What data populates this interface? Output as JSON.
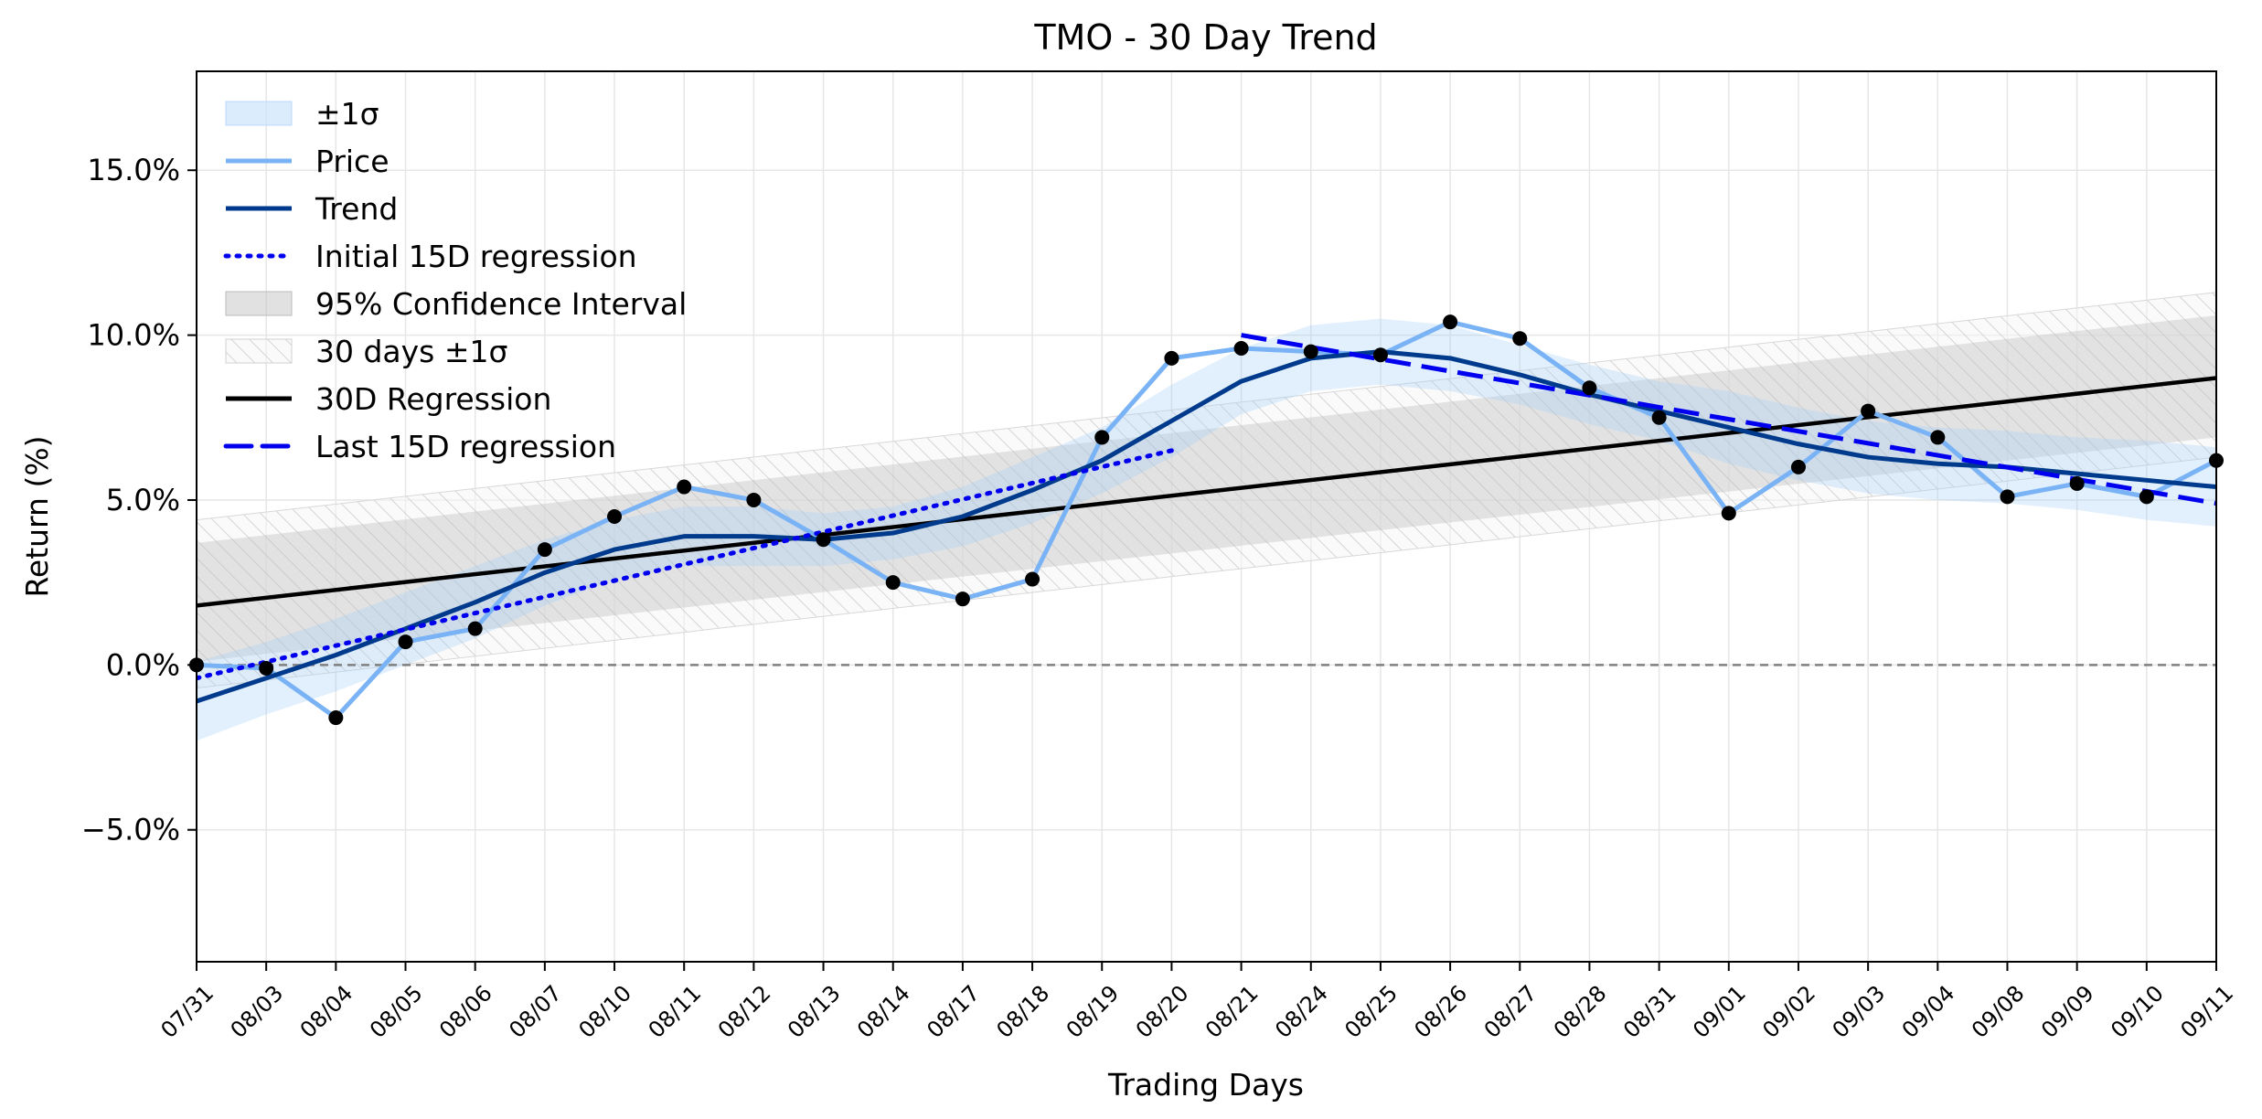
{
  "chart_data": {
    "type": "line",
    "title": "TMO - 30 Day Trend",
    "xlabel": "Trading Days",
    "ylabel": "Return (%)",
    "ylim": [
      -9.0,
      18.0
    ],
    "yticks": [
      -5.0,
      0.0,
      5.0,
      10.0,
      15.0
    ],
    "ytick_labels": [
      "−5.0%",
      "0.0%",
      "5.0%",
      "10.0%",
      "15.0%"
    ],
    "grid": true,
    "legend_position": "top-left",
    "categories": [
      "07/31",
      "08/03",
      "08/04",
      "08/05",
      "08/06",
      "08/07",
      "08/10",
      "08/11",
      "08/12",
      "08/13",
      "08/14",
      "08/17",
      "08/18",
      "08/19",
      "08/20",
      "08/21",
      "08/24",
      "08/25",
      "08/26",
      "08/27",
      "08/28",
      "08/31",
      "09/01",
      "09/02",
      "09/03",
      "09/04",
      "09/08",
      "09/09",
      "09/10",
      "09/11"
    ],
    "series": [
      {
        "name": "Price",
        "color": "#7ab3f5",
        "values": [
          0.0,
          -0.1,
          -1.6,
          0.7,
          1.1,
          3.5,
          4.5,
          5.4,
          5.0,
          3.8,
          2.5,
          2.0,
          2.6,
          6.9,
          9.3,
          9.6,
          9.5,
          9.4,
          10.4,
          9.9,
          8.4,
          7.5,
          4.6,
          6.0,
          7.7,
          6.9,
          5.1,
          5.5,
          5.1,
          6.2
        ]
      },
      {
        "name": "Trend",
        "color": "#003a8c",
        "values": [
          -1.1,
          -0.4,
          0.3,
          1.1,
          1.9,
          2.8,
          3.5,
          3.9,
          3.9,
          3.8,
          4.0,
          4.5,
          5.3,
          6.2,
          7.4,
          8.6,
          9.3,
          9.5,
          9.3,
          8.8,
          8.2,
          7.7,
          7.2,
          6.7,
          6.3,
          6.1,
          6.0,
          5.8,
          5.6,
          5.4
        ]
      },
      {
        "name": "±1σ",
        "color": "#cce4fb",
        "lower": [
          -2.3,
          -1.5,
          -0.8,
          0.0,
          0.8,
          1.8,
          2.6,
          3.0,
          3.0,
          3.0,
          3.2,
          3.6,
          4.3,
          5.2,
          6.3,
          7.6,
          8.3,
          8.5,
          8.3,
          7.9,
          7.3,
          6.8,
          6.1,
          5.6,
          5.2,
          5.0,
          4.9,
          4.7,
          4.4,
          4.2
        ],
        "upper": [
          0.1,
          0.7,
          1.4,
          2.2,
          3.0,
          3.8,
          4.4,
          4.8,
          4.8,
          4.6,
          4.8,
          5.4,
          6.3,
          7.2,
          8.5,
          9.6,
          10.3,
          10.5,
          10.3,
          9.7,
          9.1,
          8.6,
          8.3,
          7.8,
          7.4,
          7.2,
          7.1,
          6.9,
          6.8,
          6.6
        ]
      },
      {
        "name": "Initial 15D regression",
        "color": "#0000ee",
        "x_range": [
          0,
          14
        ],
        "y_range": [
          -0.4,
          6.5
        ]
      },
      {
        "name": "Last 15D regression",
        "color": "#0000ee",
        "x_range": [
          15,
          29
        ],
        "y_range": [
          10.0,
          4.9
        ]
      },
      {
        "name": "30D Regression",
        "color": "#000000",
        "x_range": [
          0,
          29
        ],
        "y_range": [
          1.8,
          8.7
        ]
      },
      {
        "name": "95% Confidence Interval",
        "color": "#d4d4d4",
        "lower_range": [
          0.1,
          6.9
        ],
        "upper_range": [
          3.7,
          10.6
        ]
      },
      {
        "name": "30 days ±1σ",
        "color": "#bbbbbb",
        "lower_range": [
          -0.7,
          6.3
        ],
        "upper_range": [
          4.4,
          11.3
        ]
      }
    ],
    "zero_line": 0.0,
    "marker_color": "#000000"
  }
}
